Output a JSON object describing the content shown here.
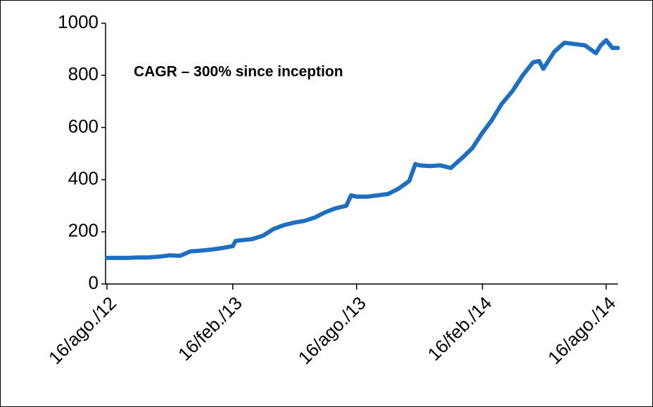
{
  "chart_data": {
    "type": "line",
    "annotation": "CAGR – 300% since inception",
    "x": [
      "2012-08-16",
      "2012-09-01",
      "2012-09-16",
      "2012-10-01",
      "2012-10-16",
      "2012-11-01",
      "2012-11-16",
      "2012-12-01",
      "2012-12-16",
      "2013-01-01",
      "2013-01-16",
      "2013-02-01",
      "2013-02-16",
      "2013-02-20",
      "2013-03-01",
      "2013-03-16",
      "2013-04-01",
      "2013-04-16",
      "2013-05-01",
      "2013-05-16",
      "2013-06-01",
      "2013-06-16",
      "2013-07-01",
      "2013-07-16",
      "2013-08-01",
      "2013-08-08",
      "2013-08-16",
      "2013-09-01",
      "2013-09-16",
      "2013-10-01",
      "2013-10-16",
      "2013-11-01",
      "2013-11-10",
      "2013-11-16",
      "2013-12-01",
      "2013-12-16",
      "2014-01-01",
      "2014-01-16",
      "2014-02-01",
      "2014-02-16",
      "2014-03-01",
      "2014-03-16",
      "2014-04-01",
      "2014-04-16",
      "2014-05-01",
      "2014-05-10",
      "2014-05-16",
      "2014-06-01",
      "2014-06-16",
      "2014-07-01",
      "2014-07-16",
      "2014-08-01",
      "2014-08-08",
      "2014-08-16",
      "2014-08-25",
      "2014-09-02"
    ],
    "series": [
      {
        "color": "#1f6fc0",
        "values": [
          100,
          100,
          100,
          102,
          102,
          105,
          110,
          108,
          125,
          128,
          132,
          138,
          145,
          165,
          168,
          172,
          185,
          210,
          225,
          235,
          242,
          255,
          275,
          290,
          300,
          340,
          335,
          335,
          340,
          345,
          365,
          395,
          460,
          455,
          452,
          455,
          445,
          480,
          520,
          580,
          625,
          690,
          740,
          800,
          850,
          855,
          825,
          890,
          925,
          920,
          915,
          885,
          915,
          935,
          905,
          905
        ]
      }
    ],
    "xlim": [
      "2012-08-14",
      "2014-09-02"
    ],
    "xticks": [
      {
        "value": "2012-08-16",
        "label": "16/ago./12"
      },
      {
        "value": "2013-02-16",
        "label": "16/feb./13"
      },
      {
        "value": "2013-08-16",
        "label": "16/ago./13"
      },
      {
        "value": "2014-02-16",
        "label": "16/feb./14"
      },
      {
        "value": "2014-08-16",
        "label": "16/ago./14"
      }
    ],
    "ylim": [
      0,
      1000
    ],
    "yticks": [
      0,
      200,
      400,
      600,
      800,
      1000
    ],
    "grid": false
  }
}
